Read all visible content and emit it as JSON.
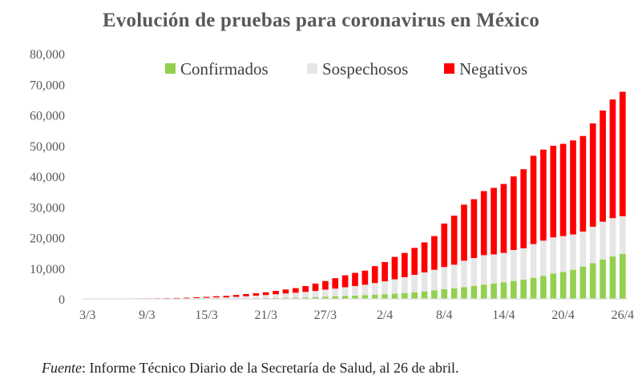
{
  "chart_data": {
    "type": "bar",
    "stacked": true,
    "title": "Evolución de pruebas para coronavirus en México",
    "xlabel": "",
    "ylabel": "",
    "ylim": [
      0,
      80000
    ],
    "yticks": [
      "0",
      "10,000",
      "20,000",
      "30,000",
      "40,000",
      "50,000",
      "60,000",
      "70,000",
      "80,000"
    ],
    "xtick_labels": [
      "3/3",
      "9/3",
      "15/3",
      "21/3",
      "27/3",
      "2/4",
      "8/4",
      "14/4",
      "20/4",
      "26/4"
    ],
    "legend_position": "top",
    "grid": false,
    "categories": [
      "3/3",
      "4/3",
      "5/3",
      "6/3",
      "7/3",
      "8/3",
      "9/3",
      "10/3",
      "11/3",
      "12/3",
      "13/3",
      "14/3",
      "15/3",
      "16/3",
      "17/3",
      "18/3",
      "19/3",
      "20/3",
      "21/3",
      "22/3",
      "23/3",
      "24/3",
      "25/3",
      "26/3",
      "27/3",
      "28/3",
      "29/3",
      "30/3",
      "31/3",
      "1/4",
      "2/4",
      "3/4",
      "4/4",
      "5/4",
      "6/4",
      "7/4",
      "8/4",
      "9/4",
      "10/4",
      "11/4",
      "12/4",
      "13/4",
      "14/4",
      "15/4",
      "16/4",
      "17/4",
      "18/4",
      "19/4",
      "20/4",
      "21/4",
      "22/4",
      "23/4",
      "24/4",
      "25/4",
      "26/4"
    ],
    "series": [
      {
        "name": "Confirmados",
        "color": "#92d050",
        "values": [
          5,
          5,
          5,
          5,
          6,
          7,
          7,
          8,
          12,
          15,
          26,
          41,
          53,
          82,
          93,
          118,
          164,
          203,
          251,
          316,
          367,
          405,
          475,
          585,
          717,
          848,
          993,
          1094,
          1215,
          1378,
          1510,
          1688,
          1890,
          2143,
          2439,
          2785,
          3181,
          3441,
          3844,
          4219,
          4661,
          5014,
          5399,
          5847,
          6297,
          6875,
          7497,
          8261,
          8772,
          9501,
          10544,
          11633,
          12872,
          13842,
          14677
        ]
      },
      {
        "name": "Sospechosos",
        "color": "#e6e6e6",
        "values": [
          20,
          25,
          30,
          35,
          40,
          45,
          55,
          70,
          90,
          120,
          160,
          220,
          300,
          380,
          400,
          550,
          700,
          850,
          1000,
          1200,
          1400,
          1600,
          1800,
          2000,
          2300,
          2500,
          2800,
          3100,
          3400,
          3800,
          4200,
          4700,
          5200,
          5700,
          6200,
          6700,
          7200,
          7700,
          8600,
          9100,
          9600,
          9500,
          9600,
          10100,
          10200,
          11000,
          11500,
          11800,
          11700,
          11500,
          11400,
          11900,
          12300,
          12500,
          12300
        ]
      },
      {
        "name": "Negativos",
        "color": "#ff0000",
        "values": [
          50,
          60,
          70,
          80,
          90,
          100,
          110,
          120,
          140,
          160,
          200,
          260,
          300,
          400,
          500,
          600,
          700,
          800,
          900,
          1100,
          1300,
          1500,
          1900,
          2400,
          2800,
          3400,
          3900,
          4300,
          4600,
          5500,
          6300,
          7300,
          7900,
          8800,
          9800,
          11000,
          14200,
          16000,
          18300,
          19200,
          20900,
          21700,
          22500,
          24000,
          25800,
          28800,
          29700,
          29900,
          30100,
          30700,
          31200,
          33700,
          36300,
          38700,
          40600
        ]
      }
    ]
  },
  "footer": {
    "source_label": "Fuente",
    "source_text": ": Informe Técnico Diario de la Secretaría de Salud, al 26 de abril."
  }
}
